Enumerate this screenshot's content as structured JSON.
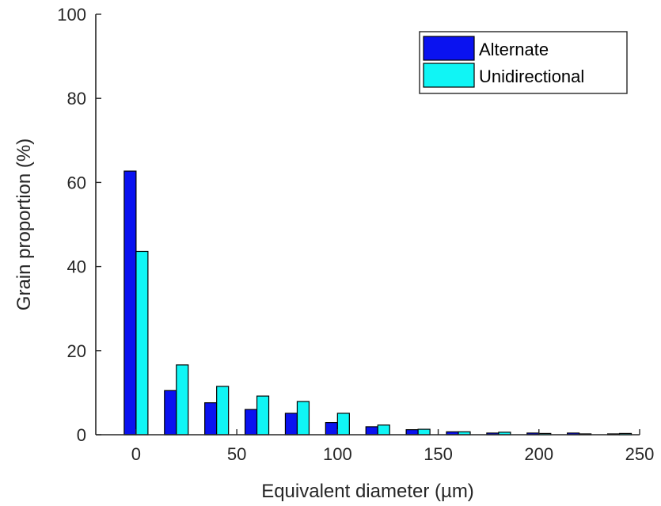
{
  "chart_data": {
    "type": "bar",
    "xlabel": "Equivalent diameter (µm)",
    "ylabel": "Grain proportion (%)",
    "xlim": [
      -20,
      250
    ],
    "ylim": [
      0,
      100
    ],
    "x_ticks": [
      "0",
      "50",
      "100",
      "150",
      "200",
      "250"
    ],
    "y_ticks": [
      "0",
      "20",
      "40",
      "60",
      "80",
      "100"
    ],
    "grid": false,
    "legend_position": "top-right",
    "categories": [
      0,
      20,
      40,
      60,
      80,
      100,
      120,
      140,
      160,
      180,
      200,
      220,
      240
    ],
    "series": [
      {
        "name": "Alternate",
        "color": "#0a12f0",
        "values": [
          62.7,
          10.5,
          7.6,
          6.0,
          5.1,
          2.9,
          1.9,
          1.2,
          0.7,
          0.4,
          0.4,
          0.4,
          0.2
        ]
      },
      {
        "name": "Unidirectional",
        "color": "#10f5f5",
        "values": [
          43.6,
          16.6,
          11.5,
          9.2,
          7.9,
          5.1,
          2.3,
          1.3,
          0.7,
          0.6,
          0.3,
          0.2,
          0.3
        ]
      }
    ]
  }
}
